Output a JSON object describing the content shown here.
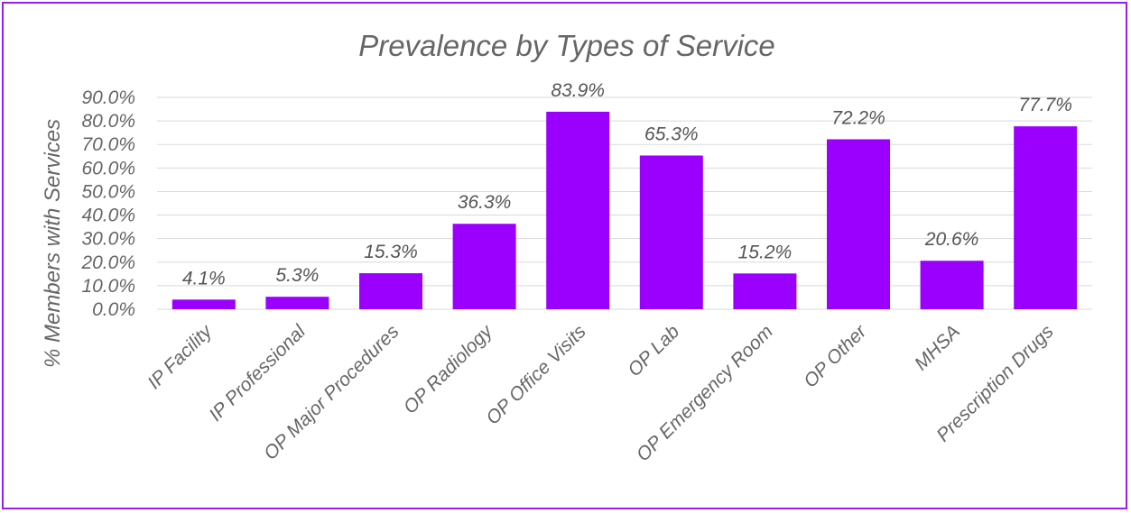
{
  "chart_data": {
    "type": "bar",
    "title": "Prevalence by Types of Service",
    "xlabel": "",
    "ylabel": "% Members with Services",
    "categories": [
      "IP Facility",
      "IP Professional",
      "OP Major Procedures",
      "OP Radiology",
      "OP Office Visits",
      "OP Lab",
      "OP Emergency Room",
      "OP Other",
      "MHSA",
      "Prescription Drugs"
    ],
    "values": [
      4.1,
      5.3,
      15.3,
      36.3,
      83.9,
      65.3,
      15.2,
      72.2,
      20.6,
      77.7
    ],
    "data_labels": [
      "4.1%",
      "5.3%",
      "15.3%",
      "36.3%",
      "83.9%",
      "65.3%",
      "15.2%",
      "72.2%",
      "20.6%",
      "77.7%"
    ],
    "y_ticks": [
      "0.0%",
      "10.0%",
      "20.0%",
      "30.0%",
      "40.0%",
      "50.0%",
      "60.0%",
      "70.0%",
      "80.0%",
      "90.0%"
    ],
    "ylim": [
      0,
      90
    ],
    "grid": true,
    "legend": "none",
    "bar_color": "#9b00ff",
    "border_color": "#9b1cf2"
  }
}
